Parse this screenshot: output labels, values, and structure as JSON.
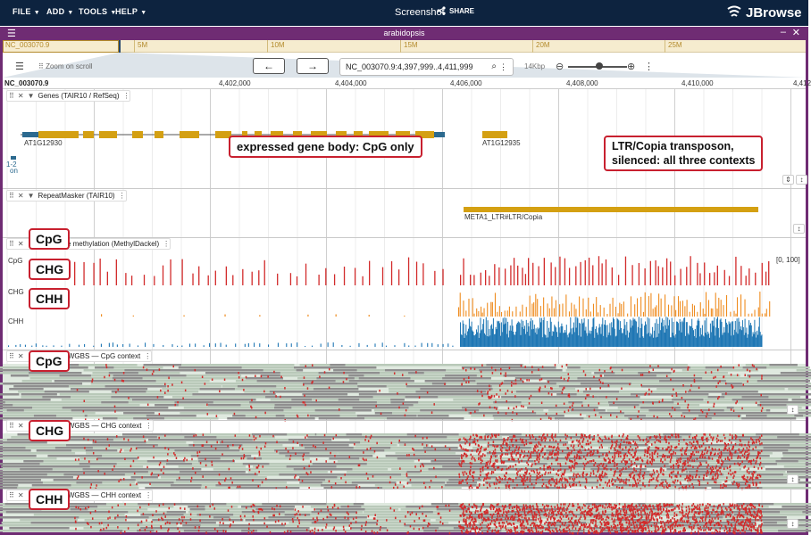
{
  "appbar": {
    "menus": [
      {
        "label": "FILE"
      },
      {
        "label": "ADD"
      },
      {
        "label": "TOOLS"
      },
      {
        "label": "HELP"
      }
    ],
    "title": "Screenshot",
    "share_label": "SHARE",
    "brand": "JBrowse"
  },
  "view": {
    "title": "arabidopsis",
    "overview": {
      "refname": "NC_003070.9",
      "labels": [
        "5M",
        "10M",
        "15M",
        "20M",
        "25M"
      ]
    },
    "controls": {
      "back_icon": "arrow-left-icon",
      "forward_icon": "arrow-right-icon",
      "location": "NC_003070.9:4,397,999..4,411,999",
      "zoom_to_scroll": "Zoom on scroll",
      "span": "14Kbp"
    },
    "ruler": {
      "refname": "NC_003070.9",
      "labels": [
        "4,402,000",
        "4,404,000",
        "4,406,000",
        "4,408,000",
        "4,410,000",
        "4,412"
      ]
    }
  },
  "tracks": {
    "genes": {
      "title": "Genes (TAIR10 / RefSeq)",
      "gene1": "AT1G12930",
      "gene2": "AT1G12935",
      "side_label_1": "1-2",
      "side_label_2": "on"
    },
    "repeats": {
      "title": "RepeatMasker (TAIR10)",
      "feature": "META1_LTR#LTR/Copia"
    },
    "aggregate": {
      "title": "Aggregate methylation (MethylDackel)",
      "rows": [
        "CpG",
        "CHG",
        "CHH"
      ],
      "range": "[0, 100]"
    },
    "reads_cpg": {
      "title": "Per-read WGBS — CpG context"
    },
    "reads_chg": {
      "title": "Per-read WGBS — CHG context"
    },
    "reads_chh": {
      "title": "Per-read WGBS — CHH context"
    }
  },
  "annotations": {
    "gene_body": "expressed gene body: CpG only",
    "te_line1": "LTR/Copia transposon,",
    "te_line2": "silenced: all three contexts",
    "cpg": "CpG",
    "chg": "CHG",
    "chh": "CHH"
  },
  "colors": {
    "appbar": "#0d233f",
    "view_border": "#6f2c73",
    "cpg": "#d22b2b",
    "chg": "#ef8c1f",
    "chh": "#1f77b4",
    "gene": "#d4a012",
    "utr": "#2c6a8f",
    "callout": "#c8202f"
  }
}
